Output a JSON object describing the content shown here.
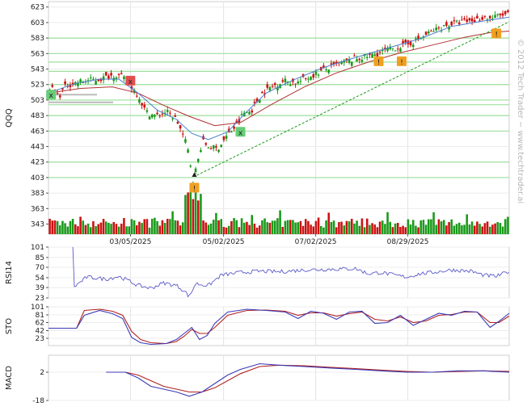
{
  "watermark": "© 2012 Tech Trader ~ www.techtrader.ai",
  "chart_data": [
    {
      "panel": "price",
      "type": "candlestick",
      "ylabel": "QQQ",
      "ylim": [
        330,
        630
      ],
      "yticks": [
        343,
        363,
        383,
        403,
        423,
        443,
        463,
        483,
        503,
        523,
        543,
        563,
        583,
        603,
        623
      ],
      "xticks": [
        "03/05/2025",
        "05/02/2025",
        "07/02/2025",
        "08/29/2025"
      ],
      "grid": true,
      "close_path": [
        [
          0,
          522
        ],
        [
          8,
          508
        ],
        [
          14,
          522
        ],
        [
          25,
          527
        ],
        [
          40,
          530
        ],
        [
          52,
          536
        ],
        [
          58,
          532
        ],
        [
          64,
          522
        ],
        [
          70,
          510
        ],
        [
          76,
          488
        ],
        [
          84,
          482
        ],
        [
          92,
          488
        ],
        [
          100,
          478
        ],
        [
          104,
          462
        ],
        [
          108,
          445
        ],
        [
          110,
          430
        ],
        [
          113,
          400
        ],
        [
          116,
          418
        ],
        [
          120,
          450
        ],
        [
          126,
          442
        ],
        [
          132,
          440
        ],
        [
          140,
          458
        ],
        [
          148,
          472
        ],
        [
          152,
          486
        ],
        [
          158,
          488
        ],
        [
          166,
          510
        ],
        [
          174,
          520
        ],
        [
          184,
          528
        ],
        [
          194,
          525
        ],
        [
          206,
          535
        ],
        [
          216,
          542
        ],
        [
          228,
          550
        ],
        [
          240,
          556
        ],
        [
          252,
          560
        ],
        [
          262,
          566
        ],
        [
          270,
          570
        ],
        [
          280,
          574
        ],
        [
          290,
          582
        ],
        [
          300,
          592
        ],
        [
          312,
          600
        ],
        [
          324,
          604
        ],
        [
          334,
          606
        ],
        [
          340,
          610
        ],
        [
          346,
          608
        ],
        [
          352,
          612
        ],
        [
          360,
          614
        ]
      ],
      "bar_count": 180,
      "ma_fast": [
        [
          0,
          512
        ],
        [
          20,
          524
        ],
        [
          40,
          530
        ],
        [
          55,
          530
        ],
        [
          70,
          512
        ],
        [
          85,
          490
        ],
        [
          100,
          478
        ],
        [
          112,
          460
        ],
        [
          125,
          452
        ],
        [
          140,
          462
        ],
        [
          155,
          488
        ],
        [
          170,
          512
        ],
        [
          190,
          528
        ],
        [
          215,
          545
        ],
        [
          240,
          558
        ],
        [
          265,
          570
        ],
        [
          290,
          582
        ],
        [
          315,
          598
        ],
        [
          340,
          605
        ],
        [
          360,
          610
        ]
      ],
      "ma_slow": [
        [
          0,
          512
        ],
        [
          25,
          518
        ],
        [
          50,
          520
        ],
        [
          70,
          512
        ],
        [
          90,
          496
        ],
        [
          110,
          482
        ],
        [
          130,
          470
        ],
        [
          150,
          474
        ],
        [
          175,
          498
        ],
        [
          200,
          520
        ],
        [
          225,
          538
        ],
        [
          250,
          552
        ],
        [
          275,
          564
        ],
        [
          300,
          574
        ],
        [
          325,
          584
        ],
        [
          345,
          590
        ],
        [
          360,
          592
        ]
      ],
      "trendline": [
        [
          116,
          406
        ],
        [
          360,
          604
        ]
      ],
      "support_levels": [
        403,
        423,
        463,
        483,
        497,
        503,
        523,
        540,
        552,
        563,
        583
      ],
      "signals": [
        {
          "x": 2,
          "price": 510,
          "label": "x",
          "color": "#66cc77"
        },
        {
          "x": 64,
          "price": 528,
          "label": "x",
          "color": "#e05050"
        },
        {
          "x": 114,
          "price": 390,
          "label": "!",
          "color": "#f0a020"
        },
        {
          "x": 150,
          "price": 462,
          "label": "x",
          "color": "#66cc77"
        },
        {
          "x": 258,
          "price": 553,
          "label": "!",
          "color": "#f0a020"
        },
        {
          "x": 276,
          "price": 553,
          "label": "!",
          "color": "#f0a020"
        },
        {
          "x": 350,
          "price": 589,
          "label": "!",
          "color": "#f0a020"
        }
      ],
      "colors": {
        "up": "#1a9a1a",
        "down": "#cc1111",
        "ma_fast": "#4a7fd0",
        "ma_slow": "#b03030",
        "trend": "#1a9a1a",
        "support": "#9de09d"
      }
    },
    {
      "panel": "rsi",
      "type": "line",
      "ylabel": "RSI14",
      "ylim": [
        23,
        101
      ],
      "yticks": [
        101,
        85,
        70,
        54,
        39,
        23
      ],
      "values_path": [
        [
          19,
          100
        ],
        [
          20,
          40
        ],
        [
          30,
          55
        ],
        [
          45,
          52
        ],
        [
          55,
          56
        ],
        [
          64,
          48
        ],
        [
          70,
          42
        ],
        [
          80,
          38
        ],
        [
          90,
          46
        ],
        [
          100,
          42
        ],
        [
          106,
          34
        ],
        [
          110,
          25
        ],
        [
          115,
          45
        ],
        [
          125,
          42
        ],
        [
          135,
          58
        ],
        [
          150,
          62
        ],
        [
          165,
          64
        ],
        [
          180,
          63
        ],
        [
          200,
          66
        ],
        [
          220,
          67
        ],
        [
          240,
          68
        ],
        [
          250,
          60
        ],
        [
          260,
          62
        ],
        [
          270,
          58
        ],
        [
          280,
          55
        ],
        [
          290,
          60
        ],
        [
          300,
          62
        ],
        [
          315,
          66
        ],
        [
          330,
          64
        ],
        [
          340,
          58
        ],
        [
          350,
          56
        ],
        [
          360,
          64
        ]
      ],
      "color": "#5a5ac8"
    },
    {
      "panel": "sto",
      "type": "line",
      "ylabel": "STO",
      "ylim": [
        5,
        101
      ],
      "yticks": [
        101,
        81,
        62,
        42,
        23
      ],
      "k_path": [
        [
          0,
          48
        ],
        [
          22,
          48
        ],
        [
          28,
          80
        ],
        [
          40,
          92
        ],
        [
          50,
          84
        ],
        [
          58,
          72
        ],
        [
          65,
          25
        ],
        [
          72,
          12
        ],
        [
          80,
          8
        ],
        [
          92,
          10
        ],
        [
          100,
          20
        ],
        [
          106,
          35
        ],
        [
          112,
          50
        ],
        [
          118,
          20
        ],
        [
          124,
          30
        ],
        [
          130,
          60
        ],
        [
          140,
          88
        ],
        [
          155,
          95
        ],
        [
          170,
          92
        ],
        [
          185,
          88
        ],
        [
          195,
          72
        ],
        [
          205,
          90
        ],
        [
          215,
          85
        ],
        [
          225,
          70
        ],
        [
          235,
          88
        ],
        [
          245,
          90
        ],
        [
          255,
          60
        ],
        [
          265,
          62
        ],
        [
          275,
          80
        ],
        [
          285,
          55
        ],
        [
          295,
          70
        ],
        [
          305,
          85
        ],
        [
          315,
          80
        ],
        [
          325,
          90
        ],
        [
          335,
          88
        ],
        [
          345,
          50
        ],
        [
          352,
          65
        ],
        [
          360,
          85
        ]
      ],
      "d_path": [
        [
          0,
          48
        ],
        [
          22,
          48
        ],
        [
          28,
          92
        ],
        [
          40,
          95
        ],
        [
          50,
          90
        ],
        [
          58,
          80
        ],
        [
          65,
          40
        ],
        [
          72,
          20
        ],
        [
          80,
          12
        ],
        [
          92,
          10
        ],
        [
          100,
          15
        ],
        [
          106,
          28
        ],
        [
          112,
          45
        ],
        [
          118,
          35
        ],
        [
          124,
          35
        ],
        [
          130,
          50
        ],
        [
          140,
          80
        ],
        [
          155,
          92
        ],
        [
          170,
          93
        ],
        [
          185,
          90
        ],
        [
          195,
          80
        ],
        [
          205,
          86
        ],
        [
          215,
          86
        ],
        [
          225,
          78
        ],
        [
          235,
          84
        ],
        [
          245,
          88
        ],
        [
          255,
          70
        ],
        [
          265,
          66
        ],
        [
          275,
          76
        ],
        [
          285,
          62
        ],
        [
          295,
          66
        ],
        [
          305,
          80
        ],
        [
          315,
          82
        ],
        [
          325,
          88
        ],
        [
          335,
          88
        ],
        [
          345,
          62
        ],
        [
          352,
          62
        ],
        [
          360,
          78
        ]
      ],
      "colors": {
        "k": "#3a3ab8",
        "d": "#b02020"
      }
    },
    {
      "panel": "macd",
      "type": "line",
      "ylabel": "MACD",
      "ylim": [
        -18,
        14
      ],
      "yticks": [
        2,
        -18
      ],
      "macd_path": [
        [
          45,
          2
        ],
        [
          60,
          2
        ],
        [
          70,
          -2
        ],
        [
          80,
          -8
        ],
        [
          90,
          -10
        ],
        [
          100,
          -12
        ],
        [
          110,
          -15
        ],
        [
          120,
          -12
        ],
        [
          130,
          -6
        ],
        [
          140,
          0
        ],
        [
          150,
          4
        ],
        [
          165,
          8
        ],
        [
          180,
          7
        ],
        [
          200,
          6
        ],
        [
          220,
          5
        ],
        [
          240,
          4
        ],
        [
          260,
          3
        ],
        [
          280,
          2
        ],
        [
          300,
          2
        ],
        [
          320,
          3
        ],
        [
          340,
          3
        ],
        [
          360,
          2
        ]
      ],
      "signal_path": [
        [
          45,
          2
        ],
        [
          60,
          2
        ],
        [
          70,
          0
        ],
        [
          80,
          -4
        ],
        [
          90,
          -8
        ],
        [
          100,
          -10
        ],
        [
          110,
          -12
        ],
        [
          120,
          -12
        ],
        [
          130,
          -9
        ],
        [
          140,
          -4
        ],
        [
          150,
          1
        ],
        [
          165,
          6
        ],
        [
          180,
          7
        ],
        [
          200,
          6.5
        ],
        [
          220,
          5.5
        ],
        [
          240,
          4.5
        ],
        [
          260,
          3.5
        ],
        [
          280,
          2.5
        ],
        [
          300,
          2
        ],
        [
          320,
          2.5
        ],
        [
          340,
          3
        ],
        [
          360,
          2.5
        ]
      ],
      "colors": {
        "macd": "#3a3ab8",
        "signal": "#b02020"
      }
    }
  ]
}
